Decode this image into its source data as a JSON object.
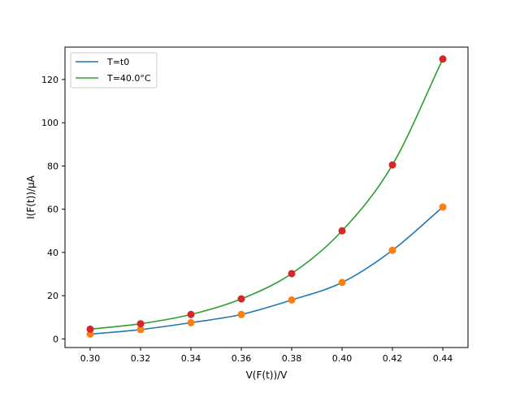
{
  "chart_data": {
    "type": "line",
    "title": "",
    "xlabel": "V(F(t))/V",
    "ylabel": "I(F(t))/μA",
    "xlim": [
      0.29,
      0.45
    ],
    "ylim": [
      -4,
      135
    ],
    "x_ticks": [
      "0.30",
      "0.32",
      "0.34",
      "0.36",
      "0.38",
      "0.40",
      "0.42",
      "0.44"
    ],
    "y_ticks": [
      "0",
      "20",
      "40",
      "60",
      "80",
      "100",
      "120"
    ],
    "grid": false,
    "legend_position": "top-left",
    "legend": [
      "T=t0",
      "T=40.0°C"
    ],
    "x": [
      0.3,
      0.32,
      0.34,
      0.36,
      0.38,
      0.4,
      0.42,
      0.44
    ],
    "series": [
      {
        "name": "T=t0",
        "line_color": "#1f77b4",
        "marker_color": "#ff7f0e",
        "values": [
          2.2,
          4.3,
          7.5,
          11.3,
          18.0,
          26.1,
          41.0,
          61.0
        ]
      },
      {
        "name": "T=40.0°C",
        "line_color": "#2ca02c",
        "marker_color": "#d62728",
        "values": [
          4.5,
          7.0,
          11.3,
          18.5,
          30.2,
          50.0,
          80.5,
          129.5
        ]
      }
    ]
  }
}
